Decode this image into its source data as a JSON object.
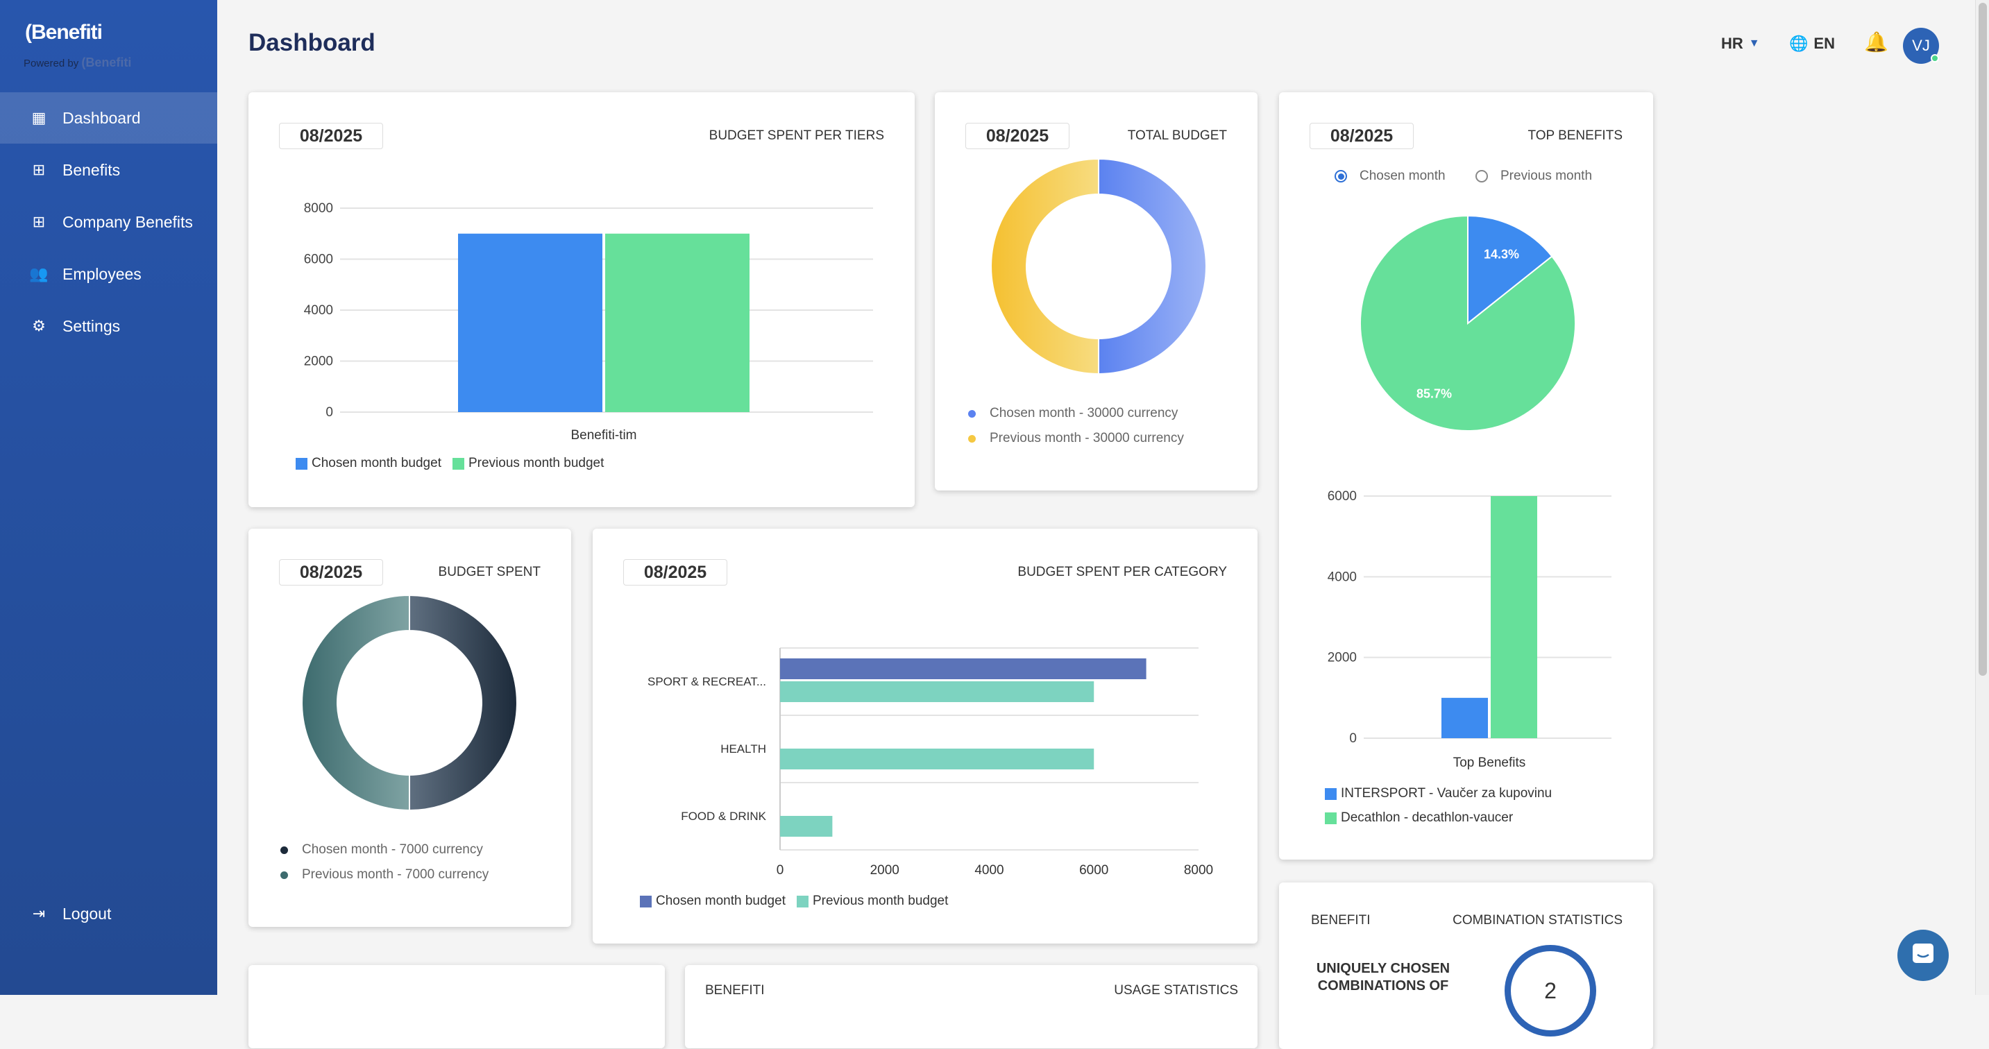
{
  "brand": {
    "logo": "(Benefiti",
    "powered_by": "Powered by",
    "powered_logo": "(Benefiti"
  },
  "sidebar": {
    "items": [
      {
        "label": "Dashboard",
        "icon": "layout-icon",
        "active": true
      },
      {
        "label": "Benefits",
        "icon": "grid-icon"
      },
      {
        "label": "Company Benefits",
        "icon": "grid-icon"
      },
      {
        "label": "Employees",
        "icon": "users-icon"
      },
      {
        "label": "Settings",
        "icon": "settings-icon"
      }
    ],
    "logout": "Logout"
  },
  "header": {
    "title": "Dashboard",
    "country": "HR",
    "language": "EN",
    "avatar": "VJ"
  },
  "colors": {
    "blue": "#3d8bf0",
    "green": "#66e09a",
    "yellow": "#f5c842",
    "navy": "#5b73b8",
    "teal": "#7dd3c0",
    "dark": "#1c2a3a",
    "slate": "#3d6b6e"
  },
  "cards": {
    "tiers": {
      "date": "08/2025",
      "title": "BUDGET SPENT PER TIERS",
      "legend": [
        "Chosen month budget",
        "Previous month budget"
      ]
    },
    "total": {
      "date": "08/2025",
      "title": "TOTAL BUDGET",
      "legend": [
        "Chosen month - 30000 currency",
        "Previous month - 30000 currency"
      ]
    },
    "top": {
      "date": "08/2025",
      "title": "TOP BENEFITS",
      "radio_chosen": "Chosen month",
      "radio_previous": "Previous month",
      "selected": "Chosen month",
      "legend": [
        "INTERSPORT - Vaučer za kupovinu",
        "Decathlon - decathlon-vaucer"
      ]
    },
    "spent": {
      "date": "08/2025",
      "title": "BUDGET SPENT",
      "legend": [
        "Chosen month - 7000 currency",
        "Previous month - 7000 currency"
      ]
    },
    "category": {
      "date": "08/2025",
      "title": "BUDGET SPENT PER CATEGORY",
      "legend": [
        "Chosen month budget",
        "Previous month budget"
      ]
    },
    "combination": {
      "left": "BENEFITI",
      "title": "COMBINATION STATISTICS",
      "label_line1": "UNIQUELY CHOSEN",
      "label_line2": "COMBINATIONS OF",
      "value": "2"
    },
    "usage": {
      "left": "BENEFITI",
      "title": "USAGE STATISTICS"
    }
  },
  "chart_data": [
    {
      "type": "bar",
      "categories": [
        "Benefiti-tim"
      ],
      "series": [
        {
          "name": "Chosen month budget",
          "values": [
            7000
          ]
        },
        {
          "name": "Previous month budget",
          "values": [
            7000
          ]
        }
      ],
      "ylim": [
        0,
        8000
      ],
      "yticks": [
        "0",
        "2000",
        "4000",
        "6000",
        "8000"
      ],
      "legend": "bottom-left",
      "grid": true
    },
    {
      "type": "pie",
      "donut": true,
      "labels": [
        "Chosen month - 30000 currency",
        "Previous month - 30000 currency"
      ],
      "values": [
        30000,
        30000
      ]
    },
    {
      "type": "pie",
      "labels": [
        "INTERSPORT - Vaučer za kupovinu",
        "Decathlon - decathlon-vaucer"
      ],
      "values": [
        14.3,
        85.7
      ],
      "data_labels": [
        "14.3%",
        "85.7%"
      ]
    },
    {
      "type": "bar",
      "xlabel": "Top Benefits",
      "categories": [
        "Top Benefits"
      ],
      "series": [
        {
          "name": "INTERSPORT - Vaučer za kupovinu",
          "values": [
            1000
          ]
        },
        {
          "name": "Decathlon - decathlon-vaucer",
          "values": [
            6000
          ]
        }
      ],
      "ylim": [
        0,
        6000
      ],
      "yticks": [
        "0",
        "2000",
        "4000",
        "6000"
      ],
      "legend": "bottom-left",
      "grid": true
    },
    {
      "type": "pie",
      "donut": true,
      "labels": [
        "Chosen month - 7000 currency",
        "Previous month - 7000 currency"
      ],
      "values": [
        7000,
        7000
      ]
    },
    {
      "type": "bar",
      "orientation": "horizontal",
      "categories": [
        "SPORT & RECREAT...",
        "HEALTH",
        "FOOD & DRINK"
      ],
      "series": [
        {
          "name": "Chosen month budget",
          "values": [
            7000,
            0,
            0
          ]
        },
        {
          "name": "Previous month budget",
          "values": [
            6000,
            6000,
            1000
          ]
        }
      ],
      "xlim": [
        0,
        8000
      ],
      "xticks": [
        "0",
        "2000",
        "4000",
        "6000",
        "8000"
      ],
      "legend": "bottom-left",
      "grid": true
    }
  ]
}
